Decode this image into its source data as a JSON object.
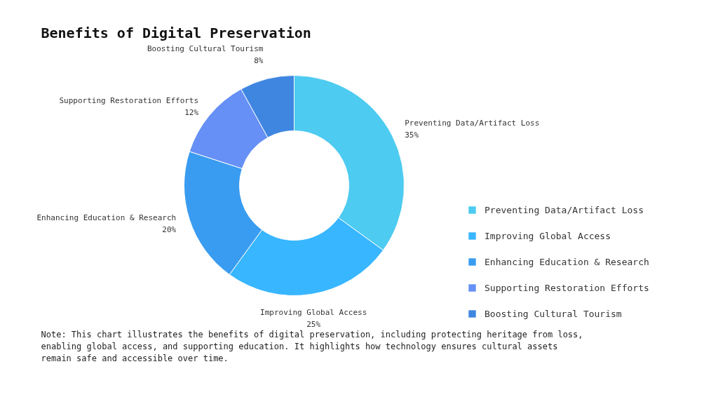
{
  "chart_data": {
    "type": "donut",
    "title": "Benefits of Digital Preservation",
    "categories": [
      "Preventing Data/Artifact Loss",
      "Improving Global Access",
      "Enhancing Education & Research",
      "Supporting Restoration Efforts",
      "Boosting Cultural Tourism"
    ],
    "values": [
      35,
      25,
      20,
      12,
      8
    ],
    "colors": [
      "#4dcbf0",
      "#38b6ff",
      "#3a9cf0",
      "#6690f5",
      "#3f86e0"
    ],
    "value_labels": [
      "35%",
      "25%",
      "20%",
      "12%",
      "8%"
    ],
    "legend": "right",
    "annotations": [
      "Note: This chart illustrates the benefits of digital preservation, including protecting heritage from loss, enabling global access, and supporting education. It highlights how technology ensures cultural assets remain safe and accessible over time."
    ]
  }
}
